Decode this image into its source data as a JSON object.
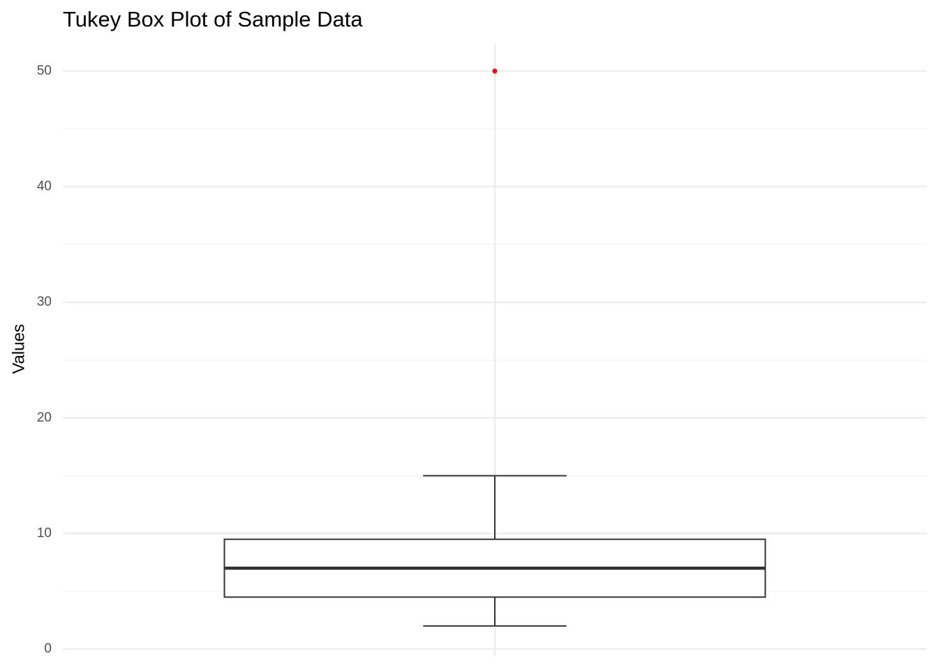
{
  "chart_data": {
    "type": "box",
    "title": "Tukey Box Plot of Sample Data",
    "y_label": "Values",
    "box": {
      "whisker_low": 2,
      "q1": 4.5,
      "median": 7,
      "q3": 9.5,
      "whisker_high": 15,
      "outliers": [
        50
      ]
    },
    "box_color": "#333333",
    "outlier_color": "#ff0000",
    "ylim": [
      -0.6,
      52.4
    ],
    "yticks": [
      0,
      10,
      20,
      30,
      40,
      50
    ],
    "minor_yticks": [
      5,
      15,
      25,
      35,
      45
    ],
    "grid": true
  }
}
